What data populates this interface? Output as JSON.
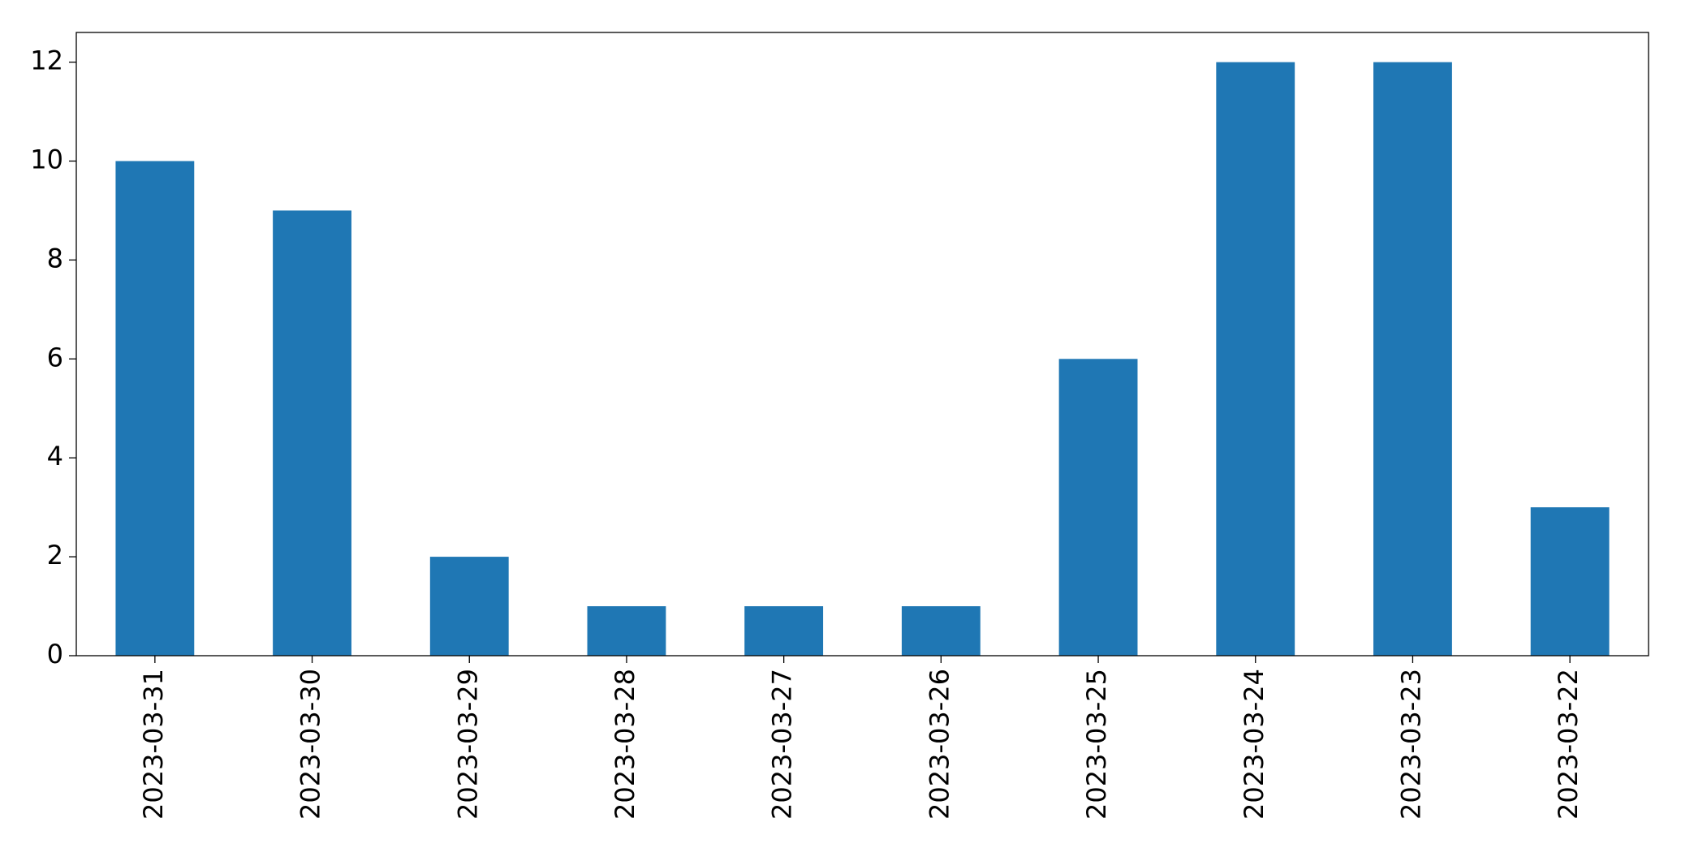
{
  "chart_data": {
    "type": "bar",
    "categories": [
      "2023-03-31",
      "2023-03-30",
      "2023-03-29",
      "2023-03-28",
      "2023-03-27",
      "2023-03-26",
      "2023-03-25",
      "2023-03-24",
      "2023-03-23",
      "2023-03-22"
    ],
    "values": [
      10,
      9,
      2,
      1,
      1,
      1,
      6,
      12,
      12,
      3
    ],
    "color": "#1f77b4",
    "ylim": [
      0,
      12.6
    ],
    "yticks": [
      0,
      2,
      4,
      6,
      8,
      10,
      12
    ],
    "grid": false
  }
}
